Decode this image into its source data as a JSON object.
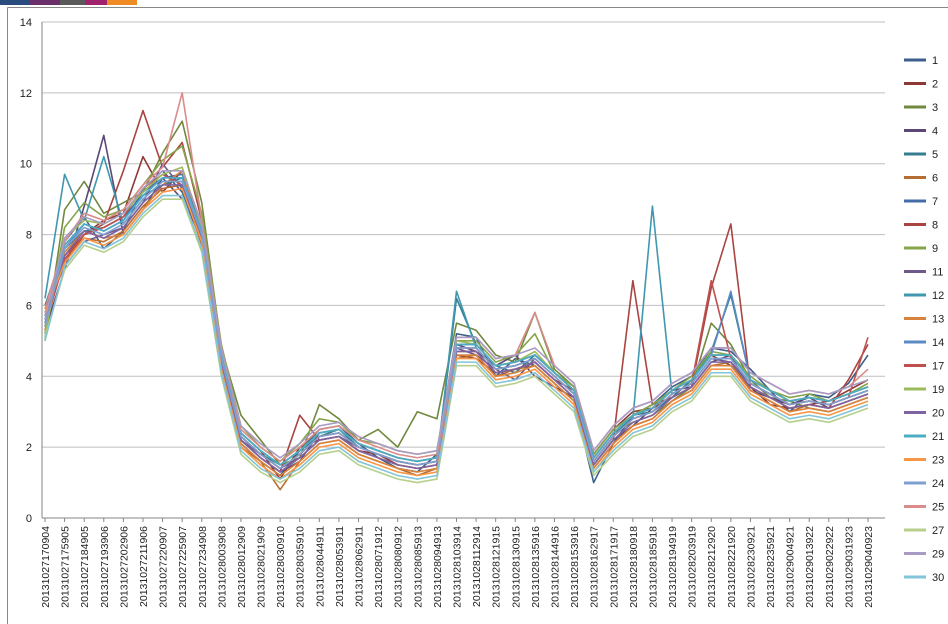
{
  "chart_data": {
    "type": "line",
    "categories": [
      "20131027170904",
      "20131027175905",
      "20131027184905",
      "20131027193906",
      "20131027202906",
      "20131027211906",
      "20131027220907",
      "20131027225907",
      "20131027234908",
      "20131028003908",
      "20131028012909",
      "20131028021909",
      "20131028030910",
      "20131028035910",
      "20131028044911",
      "20131028053911",
      "20131028062911",
      "20131028071912",
      "20131028080912",
      "20131028085913",
      "20131028094913",
      "20131028103914",
      "20131028112914",
      "20131028121915",
      "20131028130915",
      "20131028135916",
      "20131028144916",
      "20131028153916",
      "20131028162917",
      "20131028171917",
      "20131028180918",
      "20131028185918",
      "20131028194919",
      "20131028203919",
      "20131028212920",
      "20131028221920",
      "20131028230921",
      "20131028235921",
      "20131029004921",
      "20131029013922",
      "20131029022922",
      "20131029031923",
      "20131029040923"
    ],
    "ylim": [
      0,
      14
    ],
    "yticks": [
      0,
      2,
      4,
      6,
      8,
      10,
      12,
      14
    ],
    "grid": true,
    "legend": "right",
    "series": [
      {
        "name": "1",
        "color": "#3b5e8c",
        "values": [
          5.2,
          7.8,
          8.5,
          7.6,
          8.1,
          9.3,
          9.8,
          9.2,
          7.8,
          4.3,
          2.1,
          1.6,
          1.2,
          1.9,
          2.5,
          2.6,
          2.1,
          1.7,
          1.4,
          1.3,
          1.8,
          5.2,
          5.1,
          4.0,
          4.5,
          4.3,
          3.8,
          3.3,
          1.0,
          2.1,
          2.9,
          3.2,
          3.7,
          4.0,
          4.8,
          4.7,
          4.2,
          3.6,
          3.0,
          3.5,
          3.4,
          3.8,
          4.6
        ]
      },
      {
        "name": "2",
        "color": "#8c3836",
        "values": [
          5.8,
          7.2,
          8.0,
          8.4,
          8.6,
          10.2,
          9.2,
          9.8,
          8.3,
          4.6,
          2.4,
          1.9,
          1.1,
          2.0,
          2.2,
          2.3,
          1.9,
          1.8,
          1.5,
          1.4,
          1.5,
          4.6,
          4.5,
          4.1,
          4.2,
          4.4,
          3.9,
          3.6,
          1.8,
          2.5,
          3.0,
          3.1,
          3.4,
          3.9,
          4.6,
          4.3,
          3.7,
          3.2,
          3.1,
          3.2,
          3.3,
          3.6,
          3.9
        ]
      },
      {
        "name": "3",
        "color": "#71893f",
        "values": [
          5.0,
          8.7,
          9.5,
          8.6,
          8.9,
          9.2,
          10.3,
          11.2,
          8.9,
          4.8,
          2.9,
          2.2,
          1.5,
          1.7,
          3.2,
          2.8,
          2.2,
          2.5,
          2.0,
          3.0,
          2.8,
          5.5,
          5.3,
          4.6,
          4.4,
          5.8,
          4.2,
          3.7,
          1.7,
          2.4,
          2.7,
          2.9,
          3.3,
          3.7,
          5.5,
          4.9,
          3.9,
          3.4,
          3.3,
          3.1,
          3.0,
          3.2,
          3.4
        ]
      },
      {
        "name": "4",
        "color": "#5c4776",
        "values": [
          5.3,
          7.0,
          8.8,
          10.8,
          8.0,
          8.7,
          9.6,
          9.0,
          7.9,
          4.4,
          2.2,
          1.7,
          1.3,
          1.6,
          2.4,
          2.5,
          2.1,
          1.9,
          1.7,
          1.6,
          1.7,
          4.9,
          4.7,
          4.3,
          4.6,
          4.0,
          3.7,
          3.4,
          1.5,
          2.2,
          2.6,
          3.1,
          3.6,
          3.7,
          4.4,
          4.6,
          3.6,
          3.4,
          3.2,
          3.4,
          3.1,
          3.3,
          3.5
        ]
      },
      {
        "name": "5",
        "color": "#357d91",
        "values": [
          6.0,
          7.6,
          8.1,
          8.2,
          8.5,
          9.1,
          9.4,
          9.6,
          8.1,
          4.7,
          2.3,
          1.8,
          1.5,
          1.9,
          2.3,
          2.5,
          2.0,
          1.8,
          1.6,
          1.5,
          1.6,
          6.2,
          4.9,
          4.3,
          4.1,
          4.6,
          4.1,
          3.6,
          1.6,
          2.3,
          2.9,
          3.0,
          3.4,
          3.9,
          4.7,
          6.3,
          3.9,
          3.6,
          3.3,
          3.4,
          3.3,
          3.5,
          3.7
        ]
      },
      {
        "name": "6",
        "color": "#b66d31",
        "values": [
          5.6,
          7.3,
          7.9,
          7.8,
          8.1,
          8.8,
          9.3,
          9.4,
          7.7,
          4.2,
          2.0,
          1.6,
          0.8,
          1.6,
          2.1,
          2.2,
          1.8,
          1.6,
          1.4,
          1.2,
          1.4,
          4.5,
          4.6,
          4.0,
          4.2,
          4.3,
          3.8,
          3.3,
          1.4,
          2.1,
          2.6,
          2.8,
          3.3,
          3.6,
          4.3,
          4.4,
          3.6,
          3.3,
          3.0,
          3.2,
          3.1,
          3.3,
          3.5
        ]
      },
      {
        "name": "7",
        "color": "#426da9",
        "values": [
          5.4,
          7.7,
          8.3,
          8.1,
          8.4,
          9.2,
          9.6,
          9.7,
          8.2,
          4.6,
          2.4,
          1.9,
          1.5,
          1.9,
          2.4,
          2.5,
          2.1,
          1.9,
          1.7,
          1.6,
          1.7,
          4.9,
          4.9,
          4.3,
          4.4,
          4.6,
          4.1,
          3.6,
          1.7,
          2.4,
          2.9,
          3.1,
          3.6,
          3.9,
          4.6,
          4.6,
          3.9,
          3.6,
          3.3,
          3.4,
          3.3,
          3.5,
          3.7
        ]
      },
      {
        "name": "8",
        "color": "#a94441",
        "values": [
          5.7,
          7.4,
          8.0,
          8.3,
          9.8,
          11.5,
          9.9,
          10.6,
          8.4,
          4.5,
          2.2,
          1.7,
          1.3,
          2.9,
          2.2,
          2.3,
          1.9,
          1.7,
          1.5,
          1.4,
          1.5,
          4.7,
          4.7,
          4.1,
          4.2,
          4.4,
          3.9,
          3.4,
          1.5,
          2.2,
          6.7,
          3.2,
          3.4,
          3.7,
          6.5,
          8.3,
          3.7,
          3.4,
          3.1,
          3.2,
          3.1,
          3.9,
          4.9
        ]
      },
      {
        "name": "9",
        "color": "#86a44a",
        "values": [
          5.1,
          8.2,
          8.9,
          8.5,
          8.7,
          9.4,
          10.1,
          10.5,
          8.6,
          4.9,
          2.6,
          2.0,
          1.6,
          2.1,
          2.8,
          2.7,
          2.2,
          2.1,
          1.9,
          1.8,
          1.9,
          5.0,
          5.0,
          4.4,
          4.6,
          5.2,
          4.1,
          3.7,
          1.8,
          2.5,
          2.9,
          3.2,
          3.6,
          4.0,
          4.7,
          4.6,
          4.0,
          3.6,
          3.4,
          3.5,
          3.3,
          3.5,
          3.8
        ]
      },
      {
        "name": "11",
        "color": "#6e5a8a",
        "values": [
          5.9,
          7.1,
          7.8,
          8.0,
          8.2,
          8.9,
          10.0,
          9.3,
          8.0,
          4.4,
          2.2,
          1.8,
          1.4,
          1.7,
          2.2,
          2.3,
          2.0,
          1.8,
          1.6,
          1.5,
          1.6,
          4.8,
          4.6,
          4.2,
          3.9,
          4.5,
          4.0,
          3.5,
          1.6,
          2.3,
          2.8,
          3.0,
          3.5,
          3.8,
          4.5,
          4.4,
          3.8,
          3.5,
          3.2,
          3.3,
          3.2,
          3.4,
          3.6
        ]
      },
      {
        "name": "12",
        "color": "#3f97b0",
        "values": [
          6.2,
          9.7,
          8.4,
          10.2,
          8.3,
          9.0,
          9.5,
          9.5,
          8.0,
          4.5,
          2.3,
          1.8,
          1.4,
          1.8,
          2.3,
          2.4,
          2.0,
          1.8,
          1.6,
          1.5,
          1.6,
          6.4,
          4.8,
          4.2,
          4.3,
          4.5,
          4.0,
          3.5,
          1.6,
          2.3,
          2.8,
          8.8,
          3.5,
          3.8,
          4.5,
          4.5,
          3.8,
          3.5,
          3.2,
          3.3,
          3.2,
          3.4,
          3.6
        ]
      },
      {
        "name": "13",
        "color": "#d8823b",
        "values": [
          5.3,
          7.5,
          8.1,
          7.9,
          8.0,
          8.7,
          9.4,
          9.8,
          7.9,
          4.3,
          2.1,
          1.6,
          1.2,
          1.6,
          2.1,
          2.2,
          1.8,
          1.6,
          1.4,
          1.3,
          1.4,
          4.6,
          4.6,
          4.0,
          4.1,
          4.3,
          3.8,
          3.3,
          1.4,
          2.1,
          2.6,
          2.8,
          3.3,
          3.6,
          4.3,
          4.3,
          3.6,
          3.3,
          3.0,
          3.1,
          3.0,
          3.2,
          3.4
        ]
      },
      {
        "name": "14",
        "color": "#5b8ac4",
        "values": [
          5.5,
          7.6,
          8.3,
          8.1,
          8.4,
          9.1,
          9.6,
          9.6,
          8.1,
          4.6,
          2.4,
          1.9,
          1.5,
          1.9,
          2.4,
          2.5,
          2.1,
          1.9,
          1.7,
          1.6,
          1.7,
          4.9,
          4.9,
          4.3,
          4.4,
          4.6,
          4.1,
          3.6,
          1.7,
          2.4,
          2.9,
          3.1,
          3.6,
          3.9,
          4.6,
          6.4,
          3.9,
          3.6,
          3.3,
          3.4,
          3.3,
          3.5,
          3.7
        ]
      },
      {
        "name": "17",
        "color": "#c0504d",
        "values": [
          5.4,
          7.3,
          8.0,
          8.2,
          8.5,
          9.3,
          9.7,
          9.4,
          8.2,
          4.6,
          2.3,
          1.8,
          1.4,
          1.8,
          2.3,
          2.4,
          2.0,
          1.8,
          1.6,
          1.5,
          1.6,
          4.8,
          4.8,
          4.2,
          4.3,
          4.5,
          4.0,
          3.5,
          1.6,
          2.3,
          2.8,
          3.0,
          3.5,
          3.8,
          6.7,
          4.5,
          3.8,
          3.5,
          3.2,
          3.3,
          3.2,
          3.4,
          5.1
        ]
      },
      {
        "name": "19",
        "color": "#9bbb59",
        "values": [
          5.2,
          7.9,
          8.4,
          8.3,
          8.6,
          9.2,
          9.7,
          9.9,
          8.2,
          4.7,
          2.4,
          1.9,
          1.5,
          1.9,
          2.4,
          2.5,
          2.1,
          1.9,
          1.7,
          1.6,
          1.7,
          5.0,
          4.9,
          4.3,
          4.4,
          4.7,
          4.1,
          3.6,
          1.7,
          2.4,
          2.9,
          3.1,
          3.6,
          3.9,
          4.6,
          4.6,
          3.9,
          3.6,
          3.3,
          3.4,
          3.3,
          3.5,
          3.7
        ]
      },
      {
        "name": "20",
        "color": "#8064a2",
        "values": [
          5.6,
          7.4,
          8.1,
          7.9,
          8.2,
          8.9,
          9.4,
          9.4,
          7.9,
          4.4,
          2.2,
          1.7,
          1.3,
          1.7,
          2.2,
          2.3,
          1.9,
          1.7,
          1.5,
          1.4,
          1.5,
          4.7,
          4.7,
          4.1,
          4.2,
          4.4,
          3.9,
          3.4,
          1.5,
          2.2,
          2.7,
          2.9,
          3.4,
          3.7,
          4.4,
          4.4,
          3.7,
          3.4,
          3.1,
          3.2,
          3.1,
          3.3,
          3.5
        ]
      },
      {
        "name": "21",
        "color": "#4bacc6",
        "values": [
          5.7,
          7.7,
          8.3,
          8.1,
          8.4,
          9.1,
          9.6,
          9.6,
          8.1,
          4.6,
          2.4,
          1.9,
          1.5,
          1.9,
          2.4,
          2.5,
          2.1,
          1.9,
          1.7,
          1.6,
          1.7,
          4.9,
          4.9,
          4.3,
          4.4,
          4.6,
          4.1,
          3.6,
          1.7,
          2.4,
          2.9,
          3.1,
          3.6,
          3.9,
          4.6,
          4.6,
          3.9,
          3.6,
          3.3,
          3.4,
          3.3,
          3.5,
          3.7
        ]
      },
      {
        "name": "23",
        "color": "#f79646",
        "values": [
          5.8,
          7.2,
          7.9,
          7.7,
          8.0,
          8.7,
          9.2,
          9.3,
          7.8,
          4.2,
          2.0,
          1.5,
          1.1,
          1.5,
          2.0,
          2.1,
          1.7,
          1.5,
          1.3,
          1.2,
          1.3,
          4.5,
          4.5,
          3.9,
          4.0,
          4.2,
          3.7,
          3.2,
          1.3,
          2.0,
          2.5,
          2.7,
          3.2,
          3.5,
          4.2,
          4.2,
          3.5,
          3.2,
          2.9,
          3.0,
          2.9,
          3.1,
          3.3
        ]
      },
      {
        "name": "24",
        "color": "#7f9fd0",
        "values": [
          5.4,
          7.6,
          8.2,
          8.0,
          8.3,
          9.0,
          9.5,
          9.5,
          8.0,
          4.5,
          2.3,
          1.8,
          1.4,
          1.8,
          2.3,
          2.4,
          2.0,
          1.8,
          1.6,
          1.5,
          1.6,
          4.8,
          4.8,
          4.2,
          4.3,
          4.5,
          4.0,
          3.5,
          1.6,
          2.3,
          2.8,
          3.0,
          3.5,
          3.8,
          4.5,
          4.5,
          3.8,
          3.5,
          3.2,
          3.3,
          3.2,
          3.4,
          3.6
        ]
      },
      {
        "name": "25",
        "color": "#da8c8a",
        "values": [
          5.9,
          7.8,
          8.6,
          8.4,
          8.7,
          9.4,
          9.9,
          12.0,
          8.4,
          4.8,
          2.5,
          2.0,
          1.6,
          2.0,
          2.5,
          2.6,
          2.2,
          2.0,
          1.8,
          1.7,
          1.8,
          5.1,
          5.1,
          4.5,
          4.6,
          5.8,
          4.3,
          3.8,
          1.9,
          2.6,
          3.1,
          3.3,
          3.8,
          4.1,
          4.8,
          4.8,
          4.1,
          3.8,
          3.5,
          3.6,
          3.5,
          3.7,
          4.2
        ]
      },
      {
        "name": "27",
        "color": "#b6cf8a",
        "values": [
          5.1,
          7.0,
          7.7,
          7.5,
          7.8,
          8.5,
          9.0,
          9.0,
          7.5,
          4.0,
          1.8,
          1.3,
          1.0,
          1.3,
          1.8,
          1.9,
          1.5,
          1.3,
          1.1,
          1.0,
          1.1,
          4.3,
          4.3,
          3.7,
          3.8,
          4.0,
          3.5,
          3.0,
          1.2,
          1.8,
          2.3,
          2.5,
          3.0,
          3.3,
          4.0,
          4.0,
          3.3,
          3.0,
          2.7,
          2.8,
          2.7,
          2.9,
          3.1
        ]
      },
      {
        "name": "29",
        "color": "#aa9bc4",
        "values": [
          5.6,
          7.9,
          8.5,
          8.3,
          8.6,
          9.3,
          9.8,
          9.8,
          8.3,
          4.8,
          2.6,
          2.1,
          1.7,
          2.1,
          2.6,
          2.7,
          2.3,
          2.1,
          1.9,
          1.8,
          1.9,
          5.1,
          5.1,
          4.5,
          4.6,
          4.8,
          4.3,
          3.8,
          1.9,
          2.6,
          3.1,
          3.3,
          3.8,
          4.1,
          4.8,
          4.8,
          4.1,
          3.8,
          3.5,
          3.6,
          3.5,
          3.7,
          3.9
        ]
      },
      {
        "name": "30",
        "color": "#82c5d8",
        "values": [
          5.0,
          7.1,
          7.8,
          7.6,
          7.9,
          8.6,
          9.1,
          9.1,
          7.6,
          4.1,
          1.9,
          1.4,
          1.1,
          1.4,
          1.9,
          2.0,
          1.6,
          1.4,
          1.2,
          1.1,
          1.2,
          4.4,
          4.4,
          3.8,
          3.9,
          4.1,
          3.6,
          3.1,
          1.3,
          1.9,
          2.4,
          2.6,
          3.1,
          3.4,
          4.1,
          4.1,
          3.4,
          3.1,
          2.8,
          2.9,
          2.8,
          3.0,
          3.2
        ]
      }
    ]
  }
}
